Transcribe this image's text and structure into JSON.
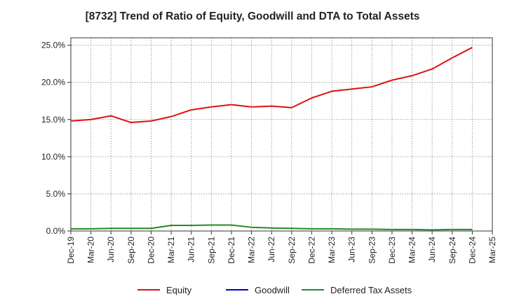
{
  "chart_data": {
    "type": "line",
    "title": "[8732]  Trend of Ratio of Equity, Goodwill and DTA to Total Assets",
    "xlabel": "",
    "ylabel": "",
    "ylim": [
      0,
      26
    ],
    "yticks": [
      0,
      5,
      10,
      15,
      20,
      25
    ],
    "ytick_labels": [
      "0.0%",
      "5.0%",
      "10.0%",
      "15.0%",
      "20.0%",
      "25.0%"
    ],
    "grid": true,
    "legend_position": "bottom",
    "categories": [
      "Dec-19",
      "Mar-20",
      "Jun-20",
      "Sep-20",
      "Dec-20",
      "Mar-21",
      "Jun-21",
      "Sep-21",
      "Dec-21",
      "Mar-22",
      "Jun-22",
      "Sep-22",
      "Dec-22",
      "Mar-23",
      "Jun-23",
      "Sep-23",
      "Dec-23",
      "Mar-24",
      "Jun-24",
      "Sep-24",
      "Dec-24",
      "Mar-25"
    ],
    "series": [
      {
        "name": "Equity",
        "color": "#dd1111",
        "values": [
          14.8,
          15.0,
          15.5,
          14.6,
          14.8,
          15.4,
          16.3,
          16.7,
          17.0,
          16.7,
          16.8,
          16.6,
          17.9,
          18.8,
          19.1,
          19.4,
          20.3,
          20.9,
          21.8,
          23.3,
          24.7,
          null
        ]
      },
      {
        "name": "Goodwill",
        "color": "#0000cc",
        "values": [
          null,
          null,
          null,
          null,
          null,
          null,
          null,
          null,
          null,
          null,
          null,
          null,
          null,
          null,
          null,
          null,
          null,
          null,
          null,
          null,
          null,
          null
        ]
      },
      {
        "name": "Deferred Tax Assets",
        "color": "#228b22",
        "values": [
          0.3,
          0.3,
          0.35,
          0.35,
          0.35,
          0.75,
          0.75,
          0.8,
          0.8,
          0.5,
          0.4,
          0.35,
          0.3,
          0.3,
          0.25,
          0.25,
          0.2,
          0.2,
          0.15,
          0.2,
          0.2,
          null
        ]
      }
    ]
  }
}
